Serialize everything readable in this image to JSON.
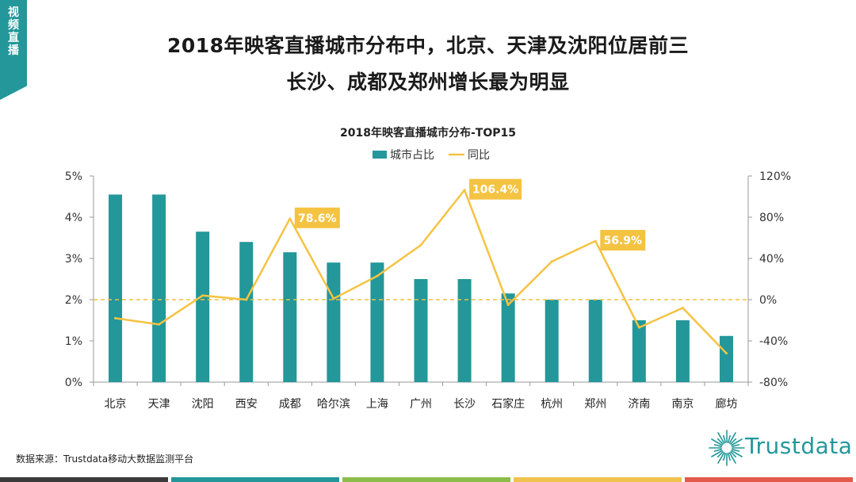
{
  "corner_tag": "视频直播",
  "headline": {
    "line1": "2018年映客直播城市分布中，北京、天津及沈阳位居前三",
    "line2": "长沙、成都及郑州增长最为明显"
  },
  "source": "数据来源：Trustdata移动大数据监测平台",
  "brand": {
    "name": "Trustdata",
    "color": "#23979a"
  },
  "bottom_strip_colors": [
    "#3a3a3a",
    "#23979a",
    "#8cbd4a",
    "#f0c24e",
    "#e35a4a"
  ],
  "colors": {
    "bar": "#23979a",
    "line": "#f5c342",
    "callout_bg": "#f5c342",
    "zero_line": "#f0c040",
    "axis_text": "#333333"
  },
  "chart_data": {
    "type": "bar+line",
    "title": "2018年映客直播城市分布-TOP15",
    "categories": [
      "北京",
      "天津",
      "沈阳",
      "西安",
      "成都",
      "哈尔滨",
      "上海",
      "广州",
      "长沙",
      "石家庄",
      "杭州",
      "郑州",
      "济南",
      "南京",
      "廊坊"
    ],
    "series": [
      {
        "name": "城市占比",
        "type": "bar",
        "axis": "left",
        "values": [
          4.55,
          4.55,
          3.65,
          3.4,
          3.15,
          2.9,
          2.9,
          2.5,
          2.5,
          2.15,
          2.0,
          2.0,
          1.5,
          1.5,
          1.12
        ]
      },
      {
        "name": "同比",
        "type": "line",
        "axis": "right",
        "values": [
          -18,
          -24,
          4,
          0,
          78.6,
          1,
          23,
          53,
          106.4,
          -5,
          37,
          56.9,
          -27,
          -8,
          -52
        ]
      }
    ],
    "y_left": {
      "min": 0,
      "max": 5,
      "ticks": [
        "0%",
        "1%",
        "2%",
        "3%",
        "4%",
        "5%"
      ]
    },
    "y_right": {
      "min": -80,
      "max": 120,
      "ticks": [
        "-80%",
        "-40%",
        "0%",
        "40%",
        "80%",
        "120%"
      ]
    },
    "callouts": [
      {
        "index": 4,
        "label": "78.6%"
      },
      {
        "index": 8,
        "label": "106.4%"
      },
      {
        "index": 11,
        "label": "56.9%"
      }
    ],
    "legend": [
      "城市占比",
      "同比"
    ]
  }
}
